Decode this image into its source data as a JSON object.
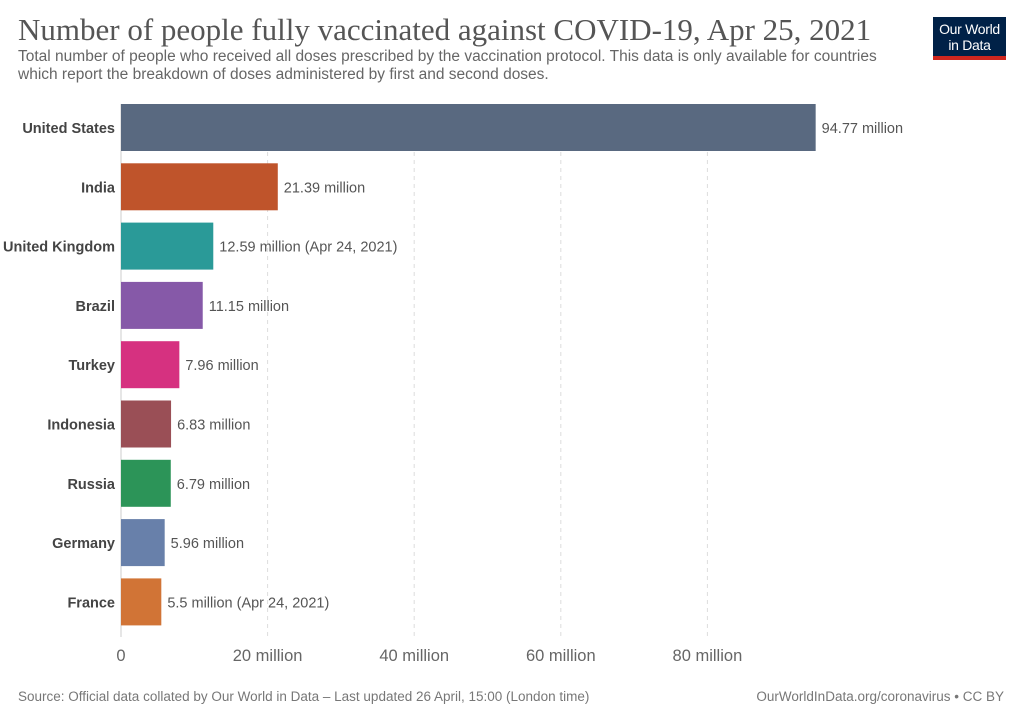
{
  "header": {
    "title": "Number of people fully vaccinated against COVID-19, Apr 25, 2021",
    "subtitle": "Total number of people who received all doses prescribed by the vaccination protocol. This data is only available for countries which report the breakdown of doses administered by first and second doses."
  },
  "logo": {
    "line1": "Our World",
    "line2": "in Data"
  },
  "footer": {
    "source": "Source: Official data collated by Our World in Data – Last updated 26 April, 15:00 (London time)",
    "credit": "OurWorldInData.org/coronavirus • CC BY"
  },
  "chart_data": {
    "type": "bar",
    "orientation": "horizontal",
    "title": "Number of people fully vaccinated against COVID-19, Apr 25, 2021",
    "xlabel": "",
    "ylabel": "",
    "xlim": [
      0,
      95
    ],
    "grid": true,
    "categories": [
      "United States",
      "India",
      "United Kingdom",
      "Brazil",
      "Turkey",
      "Indonesia",
      "Russia",
      "Germany",
      "France"
    ],
    "values": [
      94.77,
      21.39,
      12.59,
      11.15,
      7.96,
      6.83,
      6.79,
      5.96,
      5.5
    ],
    "value_labels": [
      "94.77 million",
      "21.39 million",
      "12.59 million (Apr 24, 2021)",
      "11.15 million",
      "7.96 million",
      "6.83 million",
      "6.79 million",
      "5.96 million",
      "5.5 million (Apr 24, 2021)"
    ],
    "colors": [
      "#596980",
      "#bf542b",
      "#2a9a98",
      "#8659a8",
      "#d63180",
      "#9a4f56",
      "#2c9458",
      "#6880aa",
      "#d17436"
    ],
    "x_ticks": [
      0,
      20,
      40,
      60,
      80
    ],
    "x_tick_labels": [
      "0",
      "20 million",
      "40 million",
      "60 million",
      "80 million"
    ],
    "units": "million"
  }
}
